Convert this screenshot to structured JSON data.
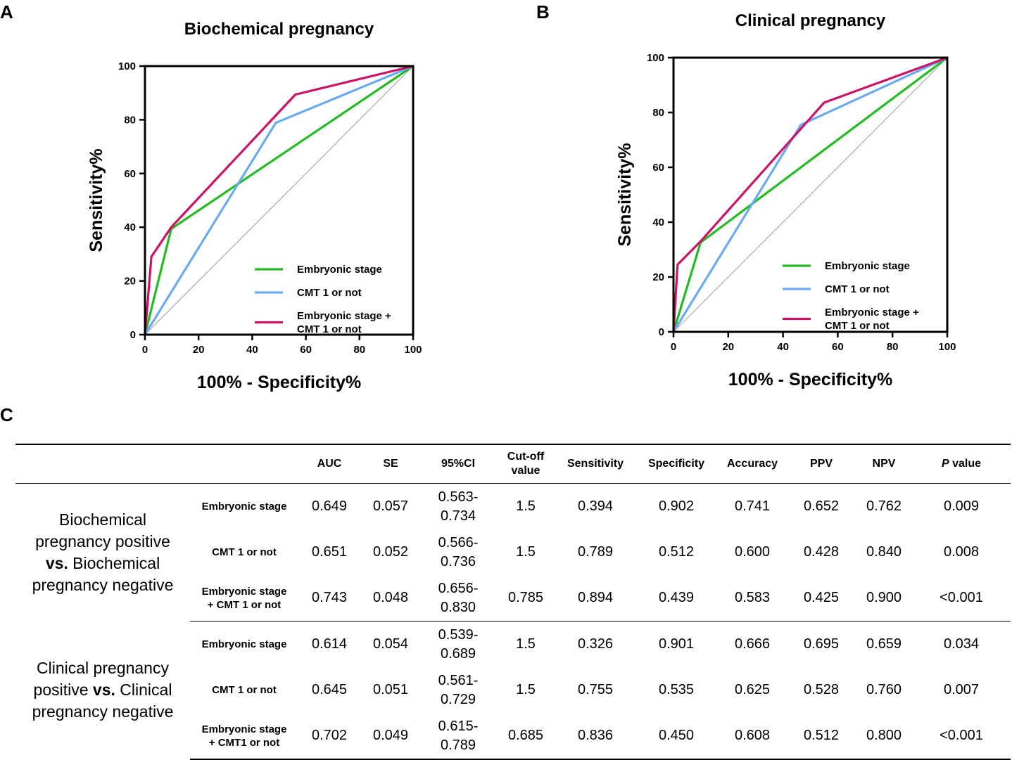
{
  "panels": {
    "a": "A",
    "b": "B",
    "c": "C"
  },
  "chart_data": [
    {
      "type": "line",
      "title": "Biochemical pregnancy",
      "xlabel": "100% - Specificity%",
      "ylabel": "Sensitivity%",
      "xlim": [
        0,
        100
      ],
      "ylim": [
        0,
        100
      ],
      "xticks": [
        0,
        20,
        40,
        60,
        80,
        100
      ],
      "yticks": [
        0,
        20,
        40,
        60,
        80,
        100
      ],
      "legend_position": "bottom-right",
      "series": [
        {
          "name": "Embryonic stage",
          "color": "#22bb22",
          "x": [
            0,
            9.8,
            100
          ],
          "y": [
            0,
            39.4,
            100
          ]
        },
        {
          "name": "CMT 1 or not",
          "color": "#6aaaf2",
          "x": [
            0,
            48.8,
            100
          ],
          "y": [
            0,
            78.9,
            100
          ]
        },
        {
          "name": "Embryonic stage + CMT 1 or not",
          "color": "#cc1166",
          "x": [
            0,
            2.4,
            9.8,
            56.1,
            100
          ],
          "y": [
            0,
            29,
            40,
            89.4,
            100
          ]
        }
      ],
      "legend_lines": [
        [
          "Embryonic stage"
        ],
        [
          "CMT 1 or not"
        ],
        [
          "Embryonic stage +",
          "CMT 1 or not"
        ]
      ]
    },
    {
      "type": "line",
      "title": "Clinical pregnancy",
      "xlabel": "100% - Specificity%",
      "ylabel": "Sensitivity%",
      "xlim": [
        0,
        100
      ],
      "ylim": [
        0,
        100
      ],
      "xticks": [
        0,
        20,
        40,
        60,
        80,
        100
      ],
      "yticks": [
        0,
        20,
        40,
        60,
        80,
        100
      ],
      "legend_position": "bottom-right",
      "series": [
        {
          "name": "Embryonic stage",
          "color": "#22bb22",
          "x": [
            0,
            9.9,
            100
          ],
          "y": [
            0,
            32.6,
            100
          ]
        },
        {
          "name": "CMT 1 or not",
          "color": "#6aaaf2",
          "x": [
            0,
            46.5,
            100
          ],
          "y": [
            0,
            75.5,
            100
          ]
        },
        {
          "name": "Embryonic stage + CMT 1 or not",
          "color": "#cc1166",
          "x": [
            0,
            1.5,
            9.9,
            55,
            100
          ],
          "y": [
            0,
            24.5,
            33,
            83.6,
            100
          ]
        }
      ],
      "legend_lines": [
        [
          "Embryonic stage"
        ],
        [
          "CMT 1 or not"
        ],
        [
          "Embryonic stage +",
          "CMT 1 or not"
        ]
      ]
    }
  ],
  "table": {
    "headers": [
      {
        "lines": [
          ""
        ]
      },
      {
        "lines": [
          ""
        ]
      },
      {
        "lines": [
          "AUC"
        ]
      },
      {
        "lines": [
          "SE"
        ]
      },
      {
        "lines": [
          "95%CI"
        ]
      },
      {
        "lines": [
          "Cut-off",
          "value"
        ]
      },
      {
        "lines": [
          "Sensitivity"
        ]
      },
      {
        "lines": [
          "Specificity"
        ]
      },
      {
        "lines": [
          "Accuracy"
        ]
      },
      {
        "lines": [
          "PPV"
        ]
      },
      {
        "lines": [
          "NPV"
        ]
      },
      {
        "italic": "P",
        "rest": " value"
      }
    ],
    "groups": [
      {
        "label_lines": [
          [
            {
              "t": "Biochemical",
              "b": false
            }
          ],
          [
            {
              "t": "pregnancy positive",
              "b": false
            }
          ],
          [
            {
              "t": "vs.",
              "b": true
            },
            {
              "t": " Biochemical",
              "b": false
            }
          ],
          [
            {
              "t": "pregnancy negative",
              "b": false
            }
          ]
        ],
        "rows": [
          {
            "label_lines": [
              "Embryonic stage"
            ],
            "auc": "0.649",
            "se": "0.057",
            "ci_lines": [
              "0.563-",
              "0.734"
            ],
            "cutoff": "1.5",
            "sensitivity": "0.394",
            "specificity": "0.902",
            "accuracy": "0.741",
            "ppv": "0.652",
            "npv": "0.762",
            "p": "0.009"
          },
          {
            "label_lines": [
              "CMT 1 or not"
            ],
            "auc": "0.651",
            "se": "0.052",
            "ci_lines": [
              "0.566-",
              "0.736"
            ],
            "cutoff": "1.5",
            "sensitivity": "0.789",
            "specificity": "0.512",
            "accuracy": "0.600",
            "ppv": "0.428",
            "npv": "0.840",
            "p": "0.008"
          },
          {
            "label_lines": [
              "Embryonic stage",
              "+ CMT 1 or not"
            ],
            "auc": "0.743",
            "se": "0.048",
            "ci_lines": [
              "0.656-",
              "0.830"
            ],
            "cutoff": "0.785",
            "sensitivity": "0.894",
            "specificity": "0.439",
            "accuracy": "0.583",
            "ppv": "0.425",
            "npv": "0.900",
            "p": "<0.001"
          }
        ]
      },
      {
        "label_lines": [
          [
            {
              "t": "Clinical pregnancy",
              "b": false
            }
          ],
          [
            {
              "t": "positive ",
              "b": false
            },
            {
              "t": "vs.",
              "b": true
            },
            {
              "t": " Clinical",
              "b": false
            }
          ],
          [
            {
              "t": "pregnancy negative",
              "b": false
            }
          ]
        ],
        "rows": [
          {
            "label_lines": [
              "Embryonic stage"
            ],
            "auc": "0.614",
            "se": "0.054",
            "ci_lines": [
              "0.539-",
              "0.689"
            ],
            "cutoff": "1.5",
            "sensitivity": "0.326",
            "specificity": "0.901",
            "accuracy": "0.666",
            "ppv": "0.695",
            "npv": "0.659",
            "p": "0.034"
          },
          {
            "label_lines": [
              "CMT 1 or not"
            ],
            "auc": "0.645",
            "se": "0.051",
            "ci_lines": [
              "0.561-",
              "0.729"
            ],
            "cutoff": "1.5",
            "sensitivity": "0.755",
            "specificity": "0.535",
            "accuracy": "0.625",
            "ppv": "0.528",
            "npv": "0.760",
            "p": "0.007"
          },
          {
            "label_lines": [
              "Embryonic stage",
              "+ CMT1 or not"
            ],
            "auc": "0.702",
            "se": "0.049",
            "ci_lines": [
              "0.615-",
              "0.789"
            ],
            "cutoff": "0.685",
            "sensitivity": "0.836",
            "specificity": "0.450",
            "accuracy": "0.608",
            "ppv": "0.512",
            "npv": "0.800",
            "p": "<0.001"
          }
        ]
      }
    ]
  }
}
